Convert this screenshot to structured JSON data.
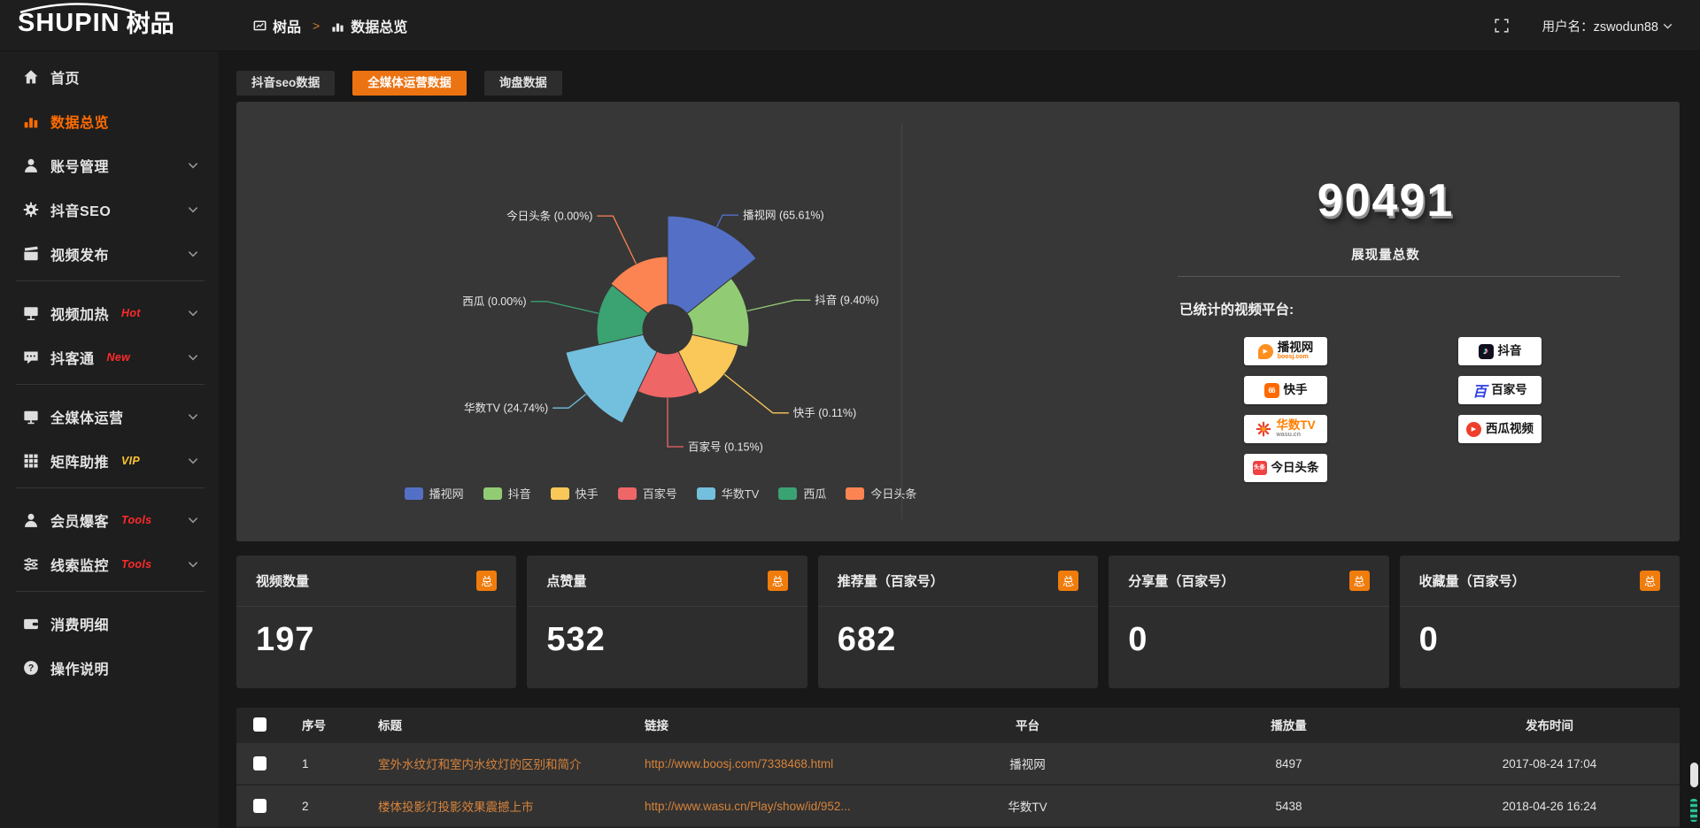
{
  "colors": {
    "accent_orange": "#ec7312",
    "sidebar_active_orange": "#ff6c00",
    "card_badge_orange": "#f07c0c",
    "link_orange": "#d8833a",
    "hot_red": "#ff2a2a",
    "vip_yellow": "#ffc233",
    "panel_bg": "#373737",
    "page_bg": "#181818"
  },
  "topbar": {
    "logo_main": "SHUPIN",
    "logo_cn": "树品",
    "breadcrumb": [
      "树品",
      "数据总览"
    ],
    "username": "用户名：zswodun88"
  },
  "sidebar": {
    "items": [
      {
        "key": "home",
        "label": "首页",
        "icon": "home"
      },
      {
        "key": "data-overview",
        "label": "数据总览",
        "icon": "bars",
        "active": true
      },
      {
        "key": "account-management",
        "label": "账号管理",
        "icon": "user",
        "chevron": true
      },
      {
        "key": "douyin-seo",
        "label": "抖音SEO",
        "icon": "gear",
        "chevron": true
      },
      {
        "key": "video-publish",
        "label": "视频发布",
        "icon": "clapper",
        "chevron": true,
        "divider_after": true
      },
      {
        "key": "video-heating",
        "label": "视频加热",
        "icon": "screen",
        "badge": "Hot",
        "badge_color": "#ff2a2a",
        "chevron": true
      },
      {
        "key": "doukertong",
        "label": "抖客通",
        "icon": "chat",
        "badge": "New",
        "badge_color": "#ff2a2a",
        "chevron": true,
        "divider_after": true
      },
      {
        "key": "omnimedia-operation",
        "label": "全媒体运营",
        "icon": "monitor",
        "chevron": true
      },
      {
        "key": "matrix-boost",
        "label": "矩阵助推",
        "icon": "grid",
        "badge": "VIP",
        "badge_color": "#ffc233",
        "chevron": true,
        "divider_after": true
      },
      {
        "key": "member-baoke",
        "label": "会员爆客",
        "icon": "person",
        "badge": "Tools",
        "badge_color": "#ff2a2a",
        "chevron": true
      },
      {
        "key": "clue-monitoring",
        "label": "线索监控",
        "icon": "sliders",
        "badge": "Tools",
        "badge_color": "#ff2a2a",
        "chevron": true,
        "divider_after": true
      },
      {
        "key": "expense-details",
        "label": "消费明细",
        "icon": "wallet"
      },
      {
        "key": "operation-guide",
        "label": "操作说明",
        "icon": "question"
      }
    ]
  },
  "tabs": [
    {
      "label": "抖音seo数据",
      "active": false
    },
    {
      "label": "全媒体运营数据",
      "active": true
    },
    {
      "label": "询盘数据",
      "active": false
    }
  ],
  "chart_data": {
    "type": "pie",
    "variant": "nightingale-rose",
    "title": "",
    "unit": "%",
    "legend_position": "bottom",
    "inner_radius": 28,
    "start_angle_deg": 0,
    "items": [
      {
        "key": "boosj",
        "name": "播视网",
        "pct": 65.61,
        "color": "#5470c6",
        "radius": 128,
        "label_line_len": 15
      },
      {
        "key": "douyin",
        "name": "抖音",
        "pct": 9.4,
        "color": "#91cc75",
        "radius": 92,
        "label_line_len": 55
      },
      {
        "key": "kuaishou",
        "name": "快手",
        "pct": 0.11,
        "color": "#fac858",
        "radius": 82,
        "label_line_len": 70
      },
      {
        "key": "baijiahao",
        "name": "百家号",
        "pct": 0.15,
        "color": "#ee6666",
        "radius": 78,
        "label_line_len": 55
      },
      {
        "key": "wasu-tv",
        "name": "华数TV",
        "pct": 24.74,
        "color": "#73c0de",
        "radius": 118,
        "label_line_len": 25
      },
      {
        "key": "xigua",
        "name": "西瓜",
        "pct": 0,
        "color": "#3ba272",
        "radius": 80,
        "label_line_len": 60
      },
      {
        "key": "toutiao",
        "name": "今日头条",
        "pct": 0,
        "color": "#fc8452",
        "radius": 82,
        "label_line_len": 60
      }
    ]
  },
  "summary": {
    "total_value": "90491",
    "total_label": "展现量总数",
    "platforms_title": "已统计的视频平台:",
    "platform_columns": {
      "left": [
        {
          "key": "boosj",
          "name": "播视网",
          "sub": "boosj.com",
          "logo": "boosj"
        },
        {
          "key": "kuaishou",
          "name": "快手",
          "logo": "ks"
        },
        {
          "key": "wasu-tv",
          "name": "华数TV",
          "sub": "wasu.cn",
          "logo": "wasu"
        },
        {
          "key": "toutiao",
          "name": "今日头条",
          "logo": "tt"
        }
      ],
      "right": [
        {
          "key": "douyin",
          "name": "抖音",
          "logo": "dy"
        },
        {
          "key": "baijiahao",
          "name": "百家号",
          "logo": "bjh"
        },
        {
          "key": "xigua",
          "name": "西瓜视频",
          "logo": "xg"
        }
      ]
    }
  },
  "stats": {
    "cards": [
      {
        "label": "视频数量",
        "badge": "总",
        "value": "197"
      },
      {
        "label": "点赞量",
        "badge": "总",
        "value": "532"
      },
      {
        "label": "推荐量（百家号）",
        "badge": "总",
        "value": "682"
      },
      {
        "label": "分享量（百家号）",
        "badge": "总",
        "value": "0"
      },
      {
        "label": "收藏量（百家号）",
        "badge": "总",
        "value": "0"
      }
    ]
  },
  "table": {
    "columns": [
      "",
      "序号",
      "标题",
      "链接",
      "平台",
      "播放量",
      "发布时间"
    ],
    "rows": [
      {
        "seq": "1",
        "title": "室外水纹灯和室内水纹灯的区别和简介",
        "link": "http://www.boosj.com/7338468.html",
        "platform": "播视网",
        "plays": "8497",
        "time": "2017-08-24 17:04"
      },
      {
        "seq": "2",
        "title": "楼体投影灯投影效果震撼上市",
        "link": "http://www.wasu.cn/Play/show/id/952...",
        "platform": "华数TV",
        "plays": "5438",
        "time": "2018-04-26 16:24"
      },
      {
        "seq": "",
        "title": "",
        "link": "",
        "platform": "",
        "plays": "",
        "time": ""
      }
    ]
  }
}
